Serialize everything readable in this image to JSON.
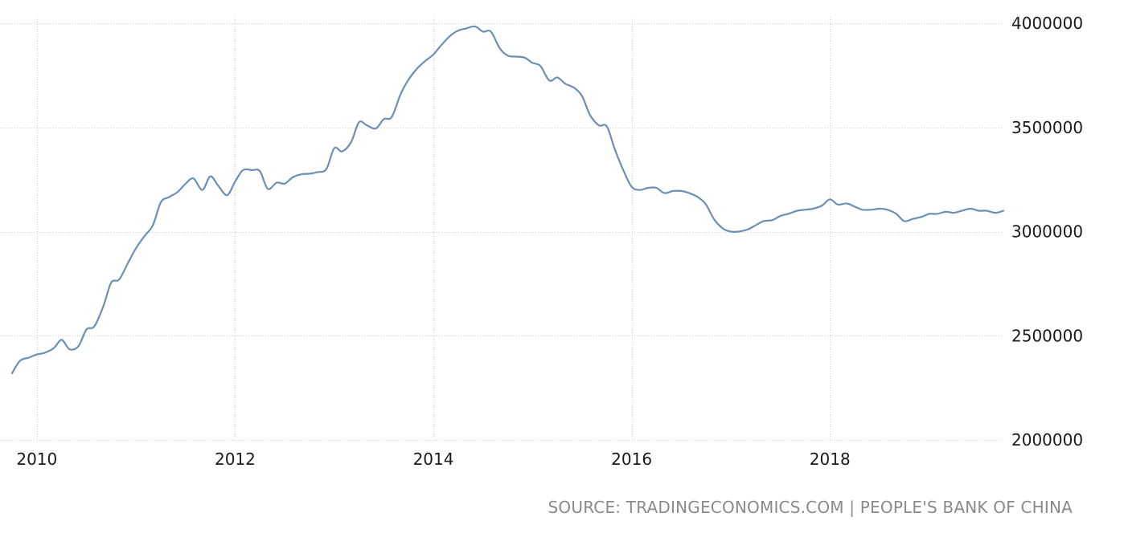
{
  "chart_data": {
    "type": "line",
    "title": "",
    "xlabel": "",
    "ylabel": "",
    "xlim": [
      2009.75,
      2019.75
    ],
    "ylim": [
      2000000,
      4000000
    ],
    "grid": true,
    "line_color": "#6b8fb5",
    "x_ticks": [
      2010,
      2012,
      2014,
      2016,
      2018
    ],
    "x_tick_labels": [
      "2010",
      "2012",
      "2014",
      "2016",
      "2018"
    ],
    "y_ticks": [
      2000000,
      2500000,
      3000000,
      3500000,
      4000000
    ],
    "y_tick_labels": [
      "2000000",
      "2500000",
      "3000000",
      "3500000",
      "4000000"
    ],
    "series": [
      {
        "points": [
          [
            2009.75,
            2320000
          ],
          [
            2009.83,
            2380000
          ],
          [
            2009.92,
            2395000
          ],
          [
            2010.0,
            2410000
          ],
          [
            2010.08,
            2418000
          ],
          [
            2010.17,
            2440000
          ],
          [
            2010.25,
            2480000
          ],
          [
            2010.33,
            2435000
          ],
          [
            2010.42,
            2450000
          ],
          [
            2010.5,
            2530000
          ],
          [
            2010.58,
            2545000
          ],
          [
            2010.67,
            2640000
          ],
          [
            2010.75,
            2755000
          ],
          [
            2010.83,
            2770000
          ],
          [
            2010.92,
            2850000
          ],
          [
            2011.0,
            2920000
          ],
          [
            2011.08,
            2975000
          ],
          [
            2011.17,
            3030000
          ],
          [
            2011.25,
            3140000
          ],
          [
            2011.33,
            3165000
          ],
          [
            2011.42,
            3190000
          ],
          [
            2011.5,
            3230000
          ],
          [
            2011.58,
            3255000
          ],
          [
            2011.67,
            3200000
          ],
          [
            2011.75,
            3265000
          ],
          [
            2011.83,
            3220000
          ],
          [
            2011.92,
            3175000
          ],
          [
            2012.0,
            3240000
          ],
          [
            2012.08,
            3295000
          ],
          [
            2012.17,
            3295000
          ],
          [
            2012.25,
            3290000
          ],
          [
            2012.33,
            3205000
          ],
          [
            2012.42,
            3235000
          ],
          [
            2012.5,
            3230000
          ],
          [
            2012.58,
            3260000
          ],
          [
            2012.67,
            3275000
          ],
          [
            2012.75,
            3278000
          ],
          [
            2012.83,
            3285000
          ],
          [
            2012.92,
            3300000
          ],
          [
            2013.0,
            3400000
          ],
          [
            2013.08,
            3385000
          ],
          [
            2013.17,
            3430000
          ],
          [
            2013.25,
            3525000
          ],
          [
            2013.33,
            3510000
          ],
          [
            2013.42,
            3495000
          ],
          [
            2013.5,
            3540000
          ],
          [
            2013.58,
            3550000
          ],
          [
            2013.67,
            3660000
          ],
          [
            2013.75,
            3730000
          ],
          [
            2013.83,
            3780000
          ],
          [
            2013.92,
            3820000
          ],
          [
            2014.0,
            3850000
          ],
          [
            2014.08,
            3895000
          ],
          [
            2014.17,
            3940000
          ],
          [
            2014.25,
            3965000
          ],
          [
            2014.33,
            3975000
          ],
          [
            2014.42,
            3985000
          ],
          [
            2014.5,
            3960000
          ],
          [
            2014.58,
            3960000
          ],
          [
            2014.67,
            3880000
          ],
          [
            2014.75,
            3845000
          ],
          [
            2014.83,
            3840000
          ],
          [
            2014.92,
            3835000
          ],
          [
            2015.0,
            3810000
          ],
          [
            2015.08,
            3795000
          ],
          [
            2015.17,
            3725000
          ],
          [
            2015.25,
            3740000
          ],
          [
            2015.33,
            3710000
          ],
          [
            2015.42,
            3690000
          ],
          [
            2015.5,
            3650000
          ],
          [
            2015.58,
            3560000
          ],
          [
            2015.67,
            3510000
          ],
          [
            2015.75,
            3505000
          ],
          [
            2015.83,
            3395000
          ],
          [
            2015.92,
            3290000
          ],
          [
            2016.0,
            3215000
          ],
          [
            2016.08,
            3200000
          ],
          [
            2016.17,
            3210000
          ],
          [
            2016.25,
            3210000
          ],
          [
            2016.33,
            3185000
          ],
          [
            2016.42,
            3195000
          ],
          [
            2016.5,
            3195000
          ],
          [
            2016.58,
            3185000
          ],
          [
            2016.67,
            3165000
          ],
          [
            2016.75,
            3130000
          ],
          [
            2016.83,
            3060000
          ],
          [
            2016.92,
            3015000
          ],
          [
            2017.0,
            3000000
          ],
          [
            2017.08,
            3000000
          ],
          [
            2017.17,
            3010000
          ],
          [
            2017.25,
            3030000
          ],
          [
            2017.33,
            3050000
          ],
          [
            2017.42,
            3055000
          ],
          [
            2017.5,
            3075000
          ],
          [
            2017.58,
            3085000
          ],
          [
            2017.67,
            3100000
          ],
          [
            2017.75,
            3105000
          ],
          [
            2017.83,
            3110000
          ],
          [
            2017.92,
            3125000
          ],
          [
            2018.0,
            3155000
          ],
          [
            2018.08,
            3130000
          ],
          [
            2018.17,
            3135000
          ],
          [
            2018.25,
            3120000
          ],
          [
            2018.33,
            3105000
          ],
          [
            2018.42,
            3105000
          ],
          [
            2018.5,
            3110000
          ],
          [
            2018.58,
            3105000
          ],
          [
            2018.67,
            3085000
          ],
          [
            2018.75,
            3050000
          ],
          [
            2018.83,
            3060000
          ],
          [
            2018.92,
            3070000
          ],
          [
            2019.0,
            3085000
          ],
          [
            2019.08,
            3085000
          ],
          [
            2019.17,
            3095000
          ],
          [
            2019.25,
            3090000
          ],
          [
            2019.33,
            3100000
          ],
          [
            2019.42,
            3110000
          ],
          [
            2019.5,
            3100000
          ],
          [
            2019.58,
            3100000
          ],
          [
            2019.67,
            3090000
          ],
          [
            2019.75,
            3100000
          ]
        ]
      }
    ]
  },
  "source": {
    "text": "SOURCE: TRADINGECONOMICS.COM | PEOPLE'S BANK OF CHINA"
  }
}
